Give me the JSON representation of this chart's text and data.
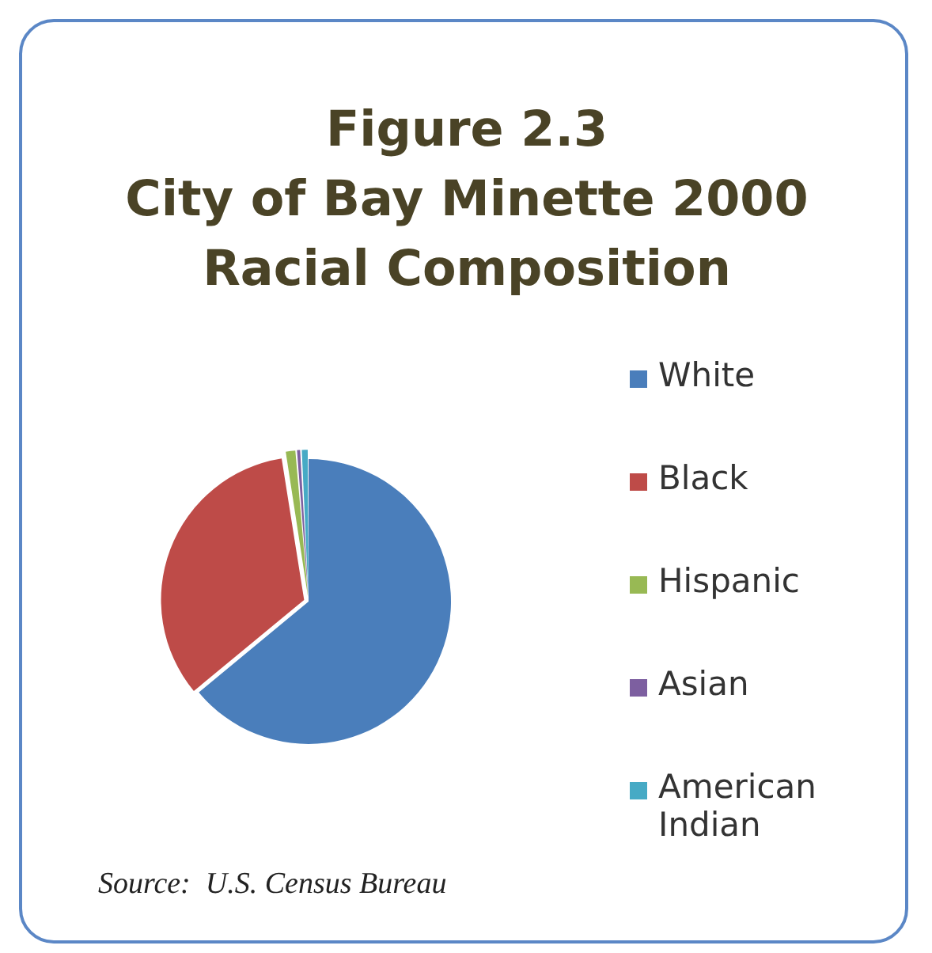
{
  "chart_data": {
    "type": "pie",
    "title": "Figure 2.3\nCity of Bay Minette 2000\nRacial Composition",
    "categories": [
      "White",
      "Black",
      "Hispanic",
      "Asian",
      "American Indian"
    ],
    "values": [
      64,
      33.5,
      1.2,
      0.5,
      0.8
    ],
    "colors": [
      "#4a7ebb",
      "#be4b48",
      "#98b954",
      "#7d5fa0",
      "#46aac5"
    ],
    "legend": "right",
    "annotations": [
      "Source:  U.S. Census Bureau"
    ]
  }
}
